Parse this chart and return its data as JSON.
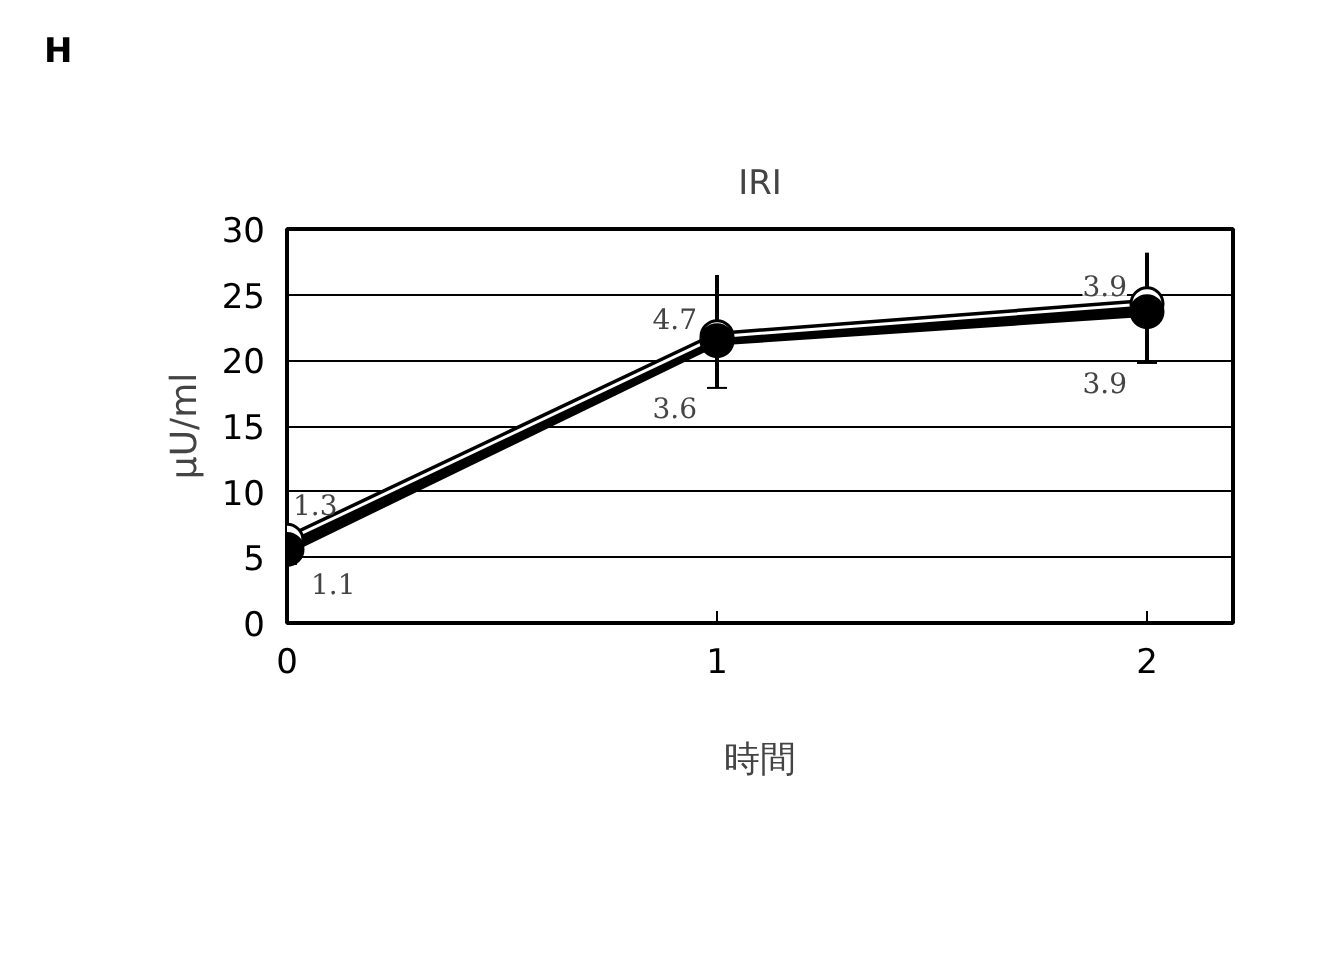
{
  "chart_data": {
    "type": "line",
    "title": "IRI",
    "xlabel": "時間",
    "ylabel": "μU/ml",
    "x": [
      0,
      1,
      2
    ],
    "xlim": [
      0,
      2.2
    ],
    "xticks": [
      0,
      1,
      2
    ],
    "ylim": [
      0,
      30
    ],
    "yticks": [
      0,
      5,
      10,
      15,
      20,
      25,
      30
    ],
    "grid": "y",
    "marker": "circle",
    "line_style": "solid",
    "series": [
      {
        "color": "#ffffff",
        "values": [
          6.3,
          21.8,
          24.3
        ],
        "errors": [
          [
            6.3,
            7.6
          ],
          [
            21.8,
            26.5
          ],
          [
            24.3,
            28.2
          ]
        ]
      },
      {
        "color": "#000000",
        "values": [
          5.6,
          21.5,
          23.7
        ],
        "errors": [
          [
            4.5,
            5.6
          ],
          [
            17.9,
            21.5
          ],
          [
            19.8,
            23.7
          ]
        ]
      }
    ],
    "annotations": [
      "H",
      {
        "text": "1.3",
        "x": 0,
        "y": 7.6
      },
      {
        "text": "1.1",
        "x": 0,
        "y": 4.5
      },
      {
        "text": "4.7",
        "x": 1,
        "y": 21.8
      },
      {
        "text": "3.6",
        "x": 1,
        "y": 17.9
      },
      {
        "text": "3.9",
        "x": 2,
        "y": 24.3
      },
      {
        "text": "3.9",
        "x": 2,
        "y": 19.8
      }
    ]
  }
}
